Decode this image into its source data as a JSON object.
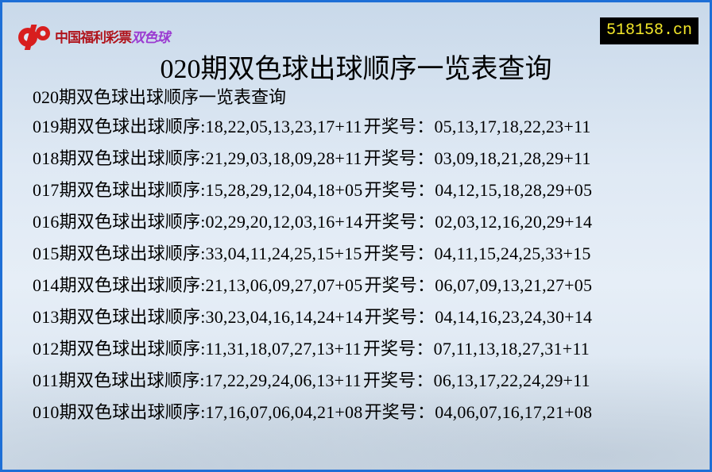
{
  "logo": {
    "text": "中国福利彩票",
    "product": "双色球",
    "brand_color": "#b0141c",
    "product_color": "#9b3bd1"
  },
  "site": "518158.cn",
  "title": "020期双色球出球顺序一览表查询",
  "subtitle": "020期双色球出球顺序一览表查询",
  "order_label": "期双色球出球顺序:",
  "draw_label": "开奖号：",
  "rows": [
    {
      "issue": "019",
      "order": "18,22,05,13,23,17+11",
      "draw": "05,13,17,18,22,23+11"
    },
    {
      "issue": "018",
      "order": "21,29,03,18,09,28+11",
      "draw": "03,09,18,21,28,29+11"
    },
    {
      "issue": "017",
      "order": "15,28,29,12,04,18+05",
      "draw": "04,12,15,18,28,29+05"
    },
    {
      "issue": "016",
      "order": "02,29,20,12,03,16+14",
      "draw": "02,03,12,16,20,29+14"
    },
    {
      "issue": "015",
      "order": "33,04,11,24,25,15+15",
      "draw": "04,11,15,24,25,33+15"
    },
    {
      "issue": "014",
      "order": "21,13,06,09,27,07+05",
      "draw": "06,07,09,13,21,27+05"
    },
    {
      "issue": "013",
      "order": "30,23,04,16,14,24+14",
      "draw": "04,14,16,23,24,30+14"
    },
    {
      "issue": "012",
      "order": "11,31,18,07,27,13+11",
      "draw": "07,11,13,18,27,31+11"
    },
    {
      "issue": "011",
      "order": "17,22,29,24,06,13+11",
      "draw": "06,13,17,22,24,29+11"
    },
    {
      "issue": "010",
      "order": "17,16,07,06,04,21+08",
      "draw": "04,06,07,16,17,21+08"
    }
  ]
}
